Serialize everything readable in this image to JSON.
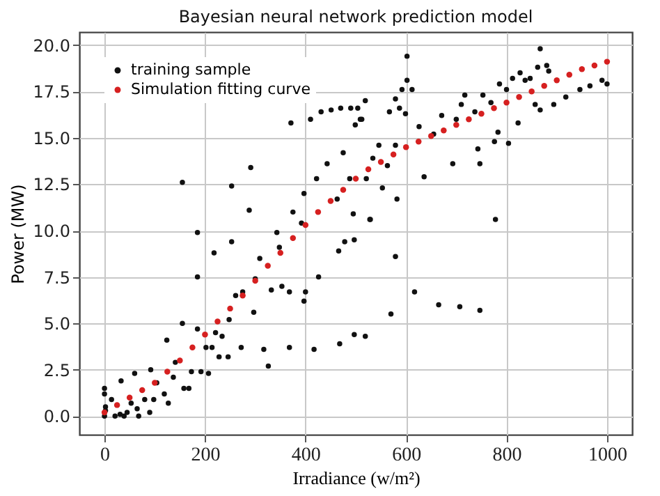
{
  "chart_data": {
    "type": "scatter",
    "title": "Bayesian neural network prediction model",
    "xlabel": "Irradiance (w/m²)",
    "ylabel": "Power (MW)",
    "xlim": [
      -50,
      1050
    ],
    "ylim": [
      -1,
      20.7
    ],
    "xticks": [
      0,
      200,
      400,
      600,
      800,
      1000
    ],
    "yticks": [
      {
        "value": 0,
        "label": "0.0"
      },
      {
        "value": 2.5,
        "label": "2.5"
      },
      {
        "value": 5,
        "label": "5.0"
      },
      {
        "value": 7.5,
        "label": "7.5"
      },
      {
        "value": 10,
        "label": "10.0"
      },
      {
        "value": 12.5,
        "label": "12.5"
      },
      {
        "value": 15,
        "label": "15.0"
      },
      {
        "value": 17.5,
        "label": "17.5"
      },
      {
        "value": 20,
        "label": "20.0"
      }
    ],
    "grid": true,
    "legend": "top left",
    "marker": "circle",
    "series": [
      {
        "name": "training sample",
        "color": "#111111",
        "x": [
          0,
          0,
          2,
          0,
          2,
          14,
          21,
          31,
          33,
          39,
          45,
          60,
          53,
          65,
          68,
          80,
          90,
          92,
          98,
          104,
          119,
          124,
          127,
          137,
          141,
          155,
          155,
          158,
          168,
          173,
          185,
          185,
          185,
          192,
          202,
          207,
          214,
          218,
          221,
          228,
          234,
          246,
          248,
          253,
          253,
          261,
          272,
          275,
          288,
          291,
          297,
          300,
          309,
          317,
          326,
          332,
          343,
          348,
          353,
          368,
          368,
          371,
          375,
          392,
          397,
          400,
          397,
          410,
          417,
          422,
          426,
          431,
          443,
          451,
          463,
          466,
          468,
          470,
          475,
          478,
          488,
          490,
          495,
          497,
          497,
          499,
          504,
          509,
          529,
          534,
          519,
          519,
          512,
          521,
          528,
          546,
          553,
          563,
          567,
          570,
          579,
          579,
          579,
          582,
          587,
          592,
          602,
          602,
          599,
          612,
          617,
          626,
          636,
          655,
          665,
          671,
          693,
          700,
          707,
          710,
          717,
          737,
          743,
          747,
          747,
          753,
          769,
          776,
          778,
          783,
          786,
          800,
          804,
          812,
          823,
          827,
          837,
          847,
          857,
          862,
          867,
          867,
          880,
          884,
          894,
          918,
          946,
          966,
          990,
          1000
        ],
        "values": [
          1.5,
          1.2,
          0.5,
          0,
          0.3,
          0.9,
          0,
          0.1,
          1.9,
          0,
          0.2,
          2.3,
          0.7,
          0.4,
          0,
          0.9,
          0.2,
          2.5,
          0.9,
          1.8,
          1.2,
          4.1,
          0.7,
          2.1,
          2.9,
          12.6,
          5.0,
          1.5,
          1.5,
          2.4,
          4.7,
          9.9,
          7.5,
          2.4,
          3.7,
          2.3,
          3.7,
          8.8,
          4.5,
          3.2,
          4.3,
          3.2,
          5.2,
          12.4,
          9.4,
          6.5,
          3.7,
          6.7,
          11.1,
          13.4,
          5.6,
          7.4,
          8.5,
          3.6,
          2.7,
          6.8,
          9.9,
          9.1,
          7.0,
          3.7,
          6.7,
          15.8,
          11.0,
          10.4,
          6.2,
          6.7,
          12.0,
          16.0,
          3.6,
          12.8,
          7.5,
          16.4,
          13.6,
          16.5,
          11.7,
          8.9,
          3.9,
          16.6,
          14.2,
          9.4,
          12.8,
          16.6,
          10.9,
          9.5,
          4.4,
          15.7,
          16.6,
          16.0,
          10.6,
          13.9,
          17.0,
          4.3,
          16.0,
          12.8,
          10.6,
          14.6,
          12.3,
          13.5,
          16.4,
          5.5,
          17.1,
          14.6,
          8.6,
          11.7,
          16.6,
          17.6,
          19.4,
          18.1,
          16.3,
          17.6,
          6.7,
          15.6,
          12.9,
          15.2,
          6.0,
          16.2,
          13.6,
          16.0,
          5.9,
          16.8,
          17.3,
          16.4,
          14.4,
          5.7,
          13.6,
          17.3,
          16.9,
          14.8,
          10.6,
          15.3,
          17.9,
          17.6,
          14.7,
          18.2,
          15.8,
          18.5,
          18.1,
          18.2,
          16.8,
          18.8,
          19.8,
          16.5,
          18.9,
          18.6,
          16.8,
          17.2,
          17.6,
          17.8,
          18.1,
          17.9
        ]
      },
      {
        "name": "Simulation fitting curve",
        "color": "#d62020",
        "x": [
          0,
          25,
          50,
          75,
          100,
          125,
          150,
          175,
          200,
          225,
          250,
          275,
          300,
          325,
          350,
          375,
          400,
          425,
          450,
          475,
          500,
          525,
          550,
          575,
          600,
          625,
          650,
          675,
          700,
          725,
          750,
          775,
          800,
          825,
          850,
          875,
          900,
          925,
          950,
          975,
          1000
        ],
        "values": [
          0.2,
          0.6,
          1.0,
          1.4,
          1.8,
          2.4,
          3.0,
          3.7,
          4.4,
          5.1,
          5.8,
          6.5,
          7.3,
          8.1,
          8.8,
          9.6,
          10.3,
          11.0,
          11.6,
          12.2,
          12.8,
          13.3,
          13.7,
          14.1,
          14.5,
          14.8,
          15.1,
          15.4,
          15.7,
          16.0,
          16.3,
          16.6,
          16.9,
          17.2,
          17.5,
          17.8,
          18.1,
          18.4,
          18.7,
          18.9,
          19.1
        ]
      }
    ]
  }
}
